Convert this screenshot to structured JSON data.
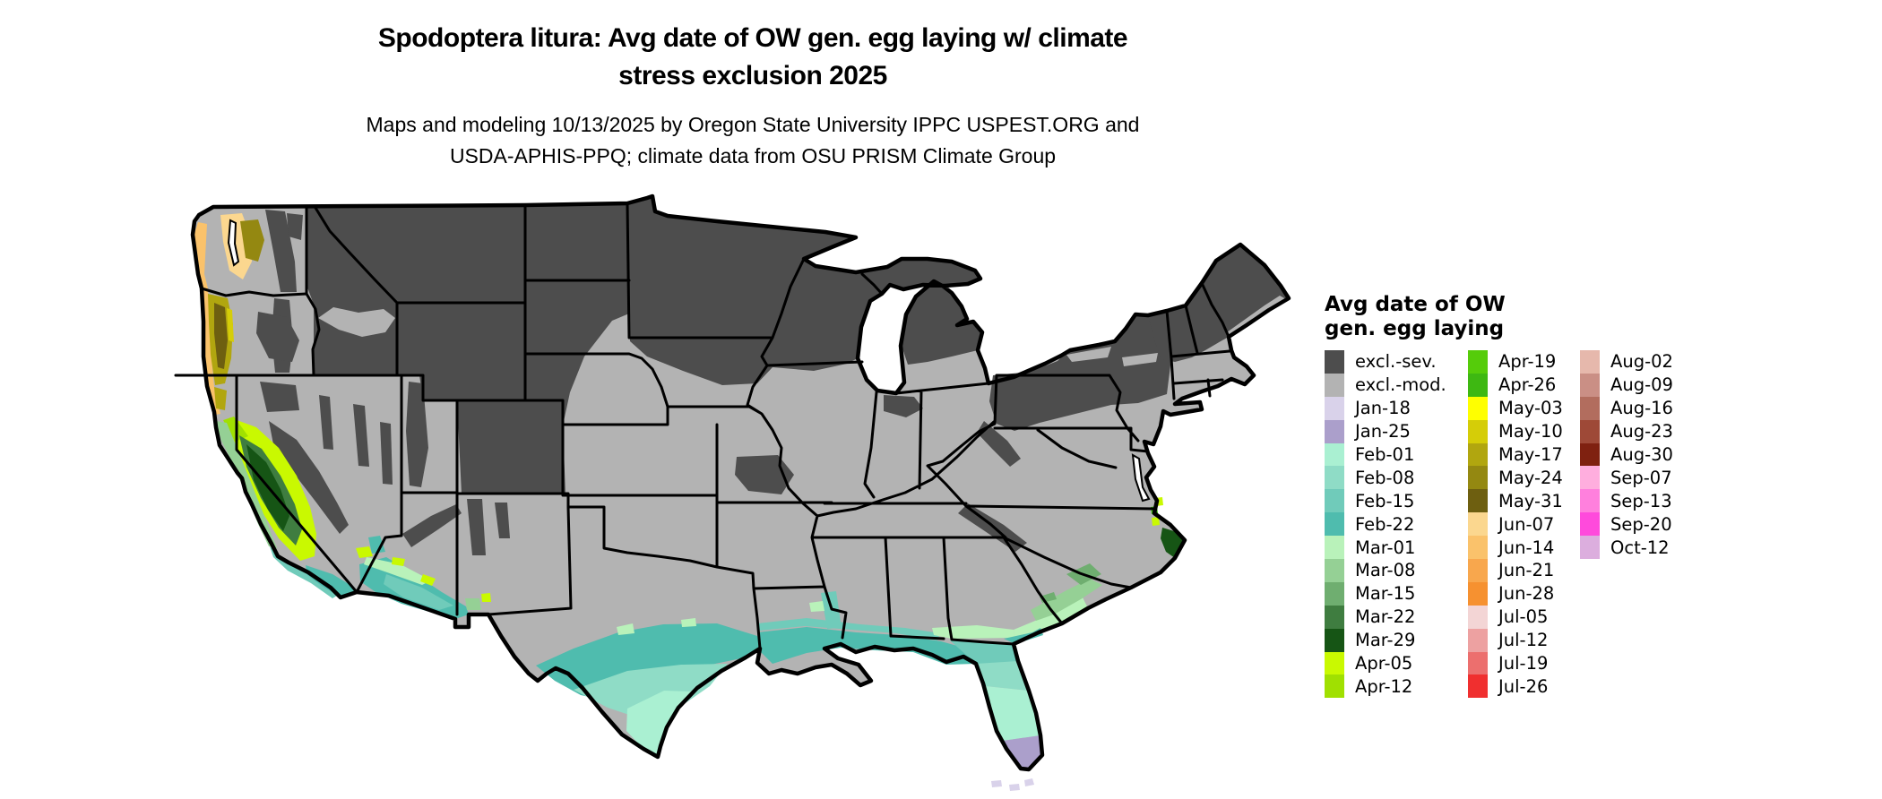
{
  "title": {
    "line1": "Spodoptera litura: Avg date of OW gen. egg laying w/ climate",
    "line2": "stress exclusion 2025"
  },
  "subtitle": {
    "line1": "Maps and modeling 10/13/2025 by Oregon State University IPPC USPEST.ORG and",
    "line2": "USDA-APHIS-PPQ; climate data from OSU PRISM Climate Group"
  },
  "legend": {
    "title_line1": "Avg date of OW",
    "title_line2": "gen. egg laying",
    "columns": [
      [
        {
          "label": "excl.-sev.",
          "color": "#4d4d4d"
        },
        {
          "label": "excl.-mod.",
          "color": "#b3b3b3"
        },
        {
          "label": "Jan-18",
          "color": "#d9d2ea"
        },
        {
          "label": "Jan-25",
          "color": "#ab9fcb"
        },
        {
          "label": "Feb-01",
          "color": "#aaf0d2"
        },
        {
          "label": "Feb-08",
          "color": "#8fdcc6"
        },
        {
          "label": "Feb-15",
          "color": "#70cbba"
        },
        {
          "label": "Feb-22",
          "color": "#4fbcae"
        },
        {
          "label": "Mar-01",
          "color": "#b9f2ba"
        },
        {
          "label": "Mar-08",
          "color": "#95d095"
        },
        {
          "label": "Mar-15",
          "color": "#6fae70"
        },
        {
          "label": "Mar-22",
          "color": "#3f7d40"
        },
        {
          "label": "Mar-29",
          "color": "#165515"
        },
        {
          "label": "Apr-05",
          "color": "#c9f901"
        },
        {
          "label": "Apr-12",
          "color": "#a0e001"
        }
      ],
      [
        {
          "label": "Apr-19",
          "color": "#55cc0a"
        },
        {
          "label": "Apr-26",
          "color": "#3eb812"
        },
        {
          "label": "May-03",
          "color": "#ffff00"
        },
        {
          "label": "May-10",
          "color": "#d5cd08"
        },
        {
          "label": "May-17",
          "color": "#b1a60f"
        },
        {
          "label": "May-24",
          "color": "#948811"
        },
        {
          "label": "May-31",
          "color": "#6e5f10"
        },
        {
          "label": "Jun-07",
          "color": "#fbd78f"
        },
        {
          "label": "Jun-14",
          "color": "#fac26b"
        },
        {
          "label": "Jun-21",
          "color": "#f8a74d"
        },
        {
          "label": "Jun-28",
          "color": "#f69130"
        },
        {
          "label": "Jul-05",
          "color": "#f3d5d5"
        },
        {
          "label": "Jul-12",
          "color": "#eda1a1"
        },
        {
          "label": "Jul-19",
          "color": "#ec6f6e"
        },
        {
          "label": "Jul-26",
          "color": "#f02f2f"
        }
      ],
      [
        {
          "label": "Aug-02",
          "color": "#e6b8ac"
        },
        {
          "label": "Aug-09",
          "color": "#ca8f85"
        },
        {
          "label": "Aug-16",
          "color": "#b26d5e"
        },
        {
          "label": "Aug-23",
          "color": "#9e4937"
        },
        {
          "label": "Aug-30",
          "color": "#7f2110"
        },
        {
          "label": "Sep-07",
          "color": "#ffaede"
        },
        {
          "label": "Sep-13",
          "color": "#ff80dd"
        },
        {
          "label": "Sep-20",
          "color": "#ff4adc"
        },
        {
          "label": "Oct-12",
          "color": "#dcaede"
        }
      ]
    ]
  },
  "colors": {
    "background": "#ffffff",
    "border": "#000000",
    "excl_sev": "#4d4d4d",
    "excl_mod": "#b3b3b3",
    "jan18": "#d9d2ea",
    "jan25": "#ab9fcb",
    "feb01": "#aaf0d2",
    "feb08": "#8fdcc6",
    "feb15": "#70cbba",
    "feb22": "#4fbcae",
    "mar01": "#b9f2ba",
    "mar08": "#95d095",
    "mar15": "#6fae70",
    "mar22": "#3f7d40",
    "mar29": "#165515",
    "apr05": "#c9f901",
    "apr12": "#a0e001",
    "apr26": "#3eb812",
    "may10": "#d5cd08",
    "may17": "#b1a60f",
    "may24": "#948811",
    "may31": "#6e5f10",
    "jun07": "#fbd78f",
    "jun14": "#fac26b",
    "white": "#ffffff"
  },
  "map": {
    "regions": [
      {
        "area": "northern plains, Rockies and upper Midwest",
        "category": "excl.-sev."
      },
      {
        "area": "central and southern interior, Great Basin, east coast interior",
        "category": "excl.-mod."
      },
      {
        "area": "Washington coast and Puget lowland",
        "category": "Jun-07 to Jun-21"
      },
      {
        "area": "western Oregon valleys",
        "category": "May-10 to May-31"
      },
      {
        "area": "California Central Valley rim",
        "category": "Apr-05 to Apr-12"
      },
      {
        "area": "California Central Valley core",
        "category": "Mar-22 to Mar-29"
      },
      {
        "area": "central California coast",
        "category": "Mar-01 to Mar-15"
      },
      {
        "area": "southern California coast",
        "category": "Feb-15 to Feb-22"
      },
      {
        "area": "southwest Arizona desert",
        "category": "Feb-15 to Mar-01"
      },
      {
        "area": "south Texas",
        "category": "Feb-01 to Feb-22"
      },
      {
        "area": "Gulf of Mexico coastal strip",
        "category": "Feb-15 to Feb-22"
      },
      {
        "area": "northern Florida",
        "category": "Feb-08 to Feb-15"
      },
      {
        "area": "central Florida",
        "category": "Feb-01"
      },
      {
        "area": "southern Florida",
        "category": "Jan-25"
      },
      {
        "area": "Florida Keys",
        "category": "Jan-18"
      },
      {
        "area": "Georgia / South Carolina coastal plain",
        "category": "Mar-01 to Mar-15"
      },
      {
        "area": "North Carolina Outer Banks",
        "category": "Mar-29 with Apr-05 spots"
      }
    ]
  }
}
